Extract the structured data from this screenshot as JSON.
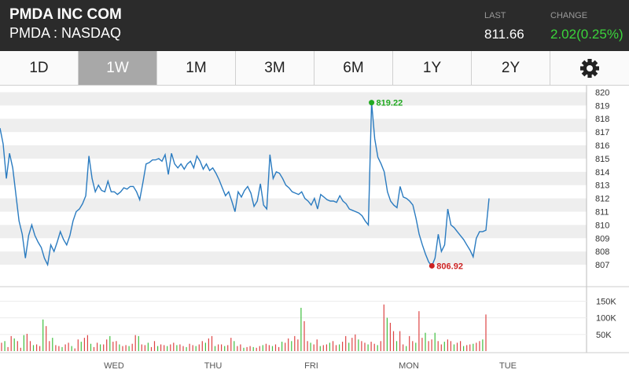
{
  "header": {
    "name": "PMDA INC COM",
    "exchange": "PMDA : NASDAQ",
    "last_label": "LAST",
    "last_value": "811.66",
    "change_label": "CHANGE",
    "change_value": "2.02(0.25%)",
    "change_color": "#3bd43b"
  },
  "tabs": [
    {
      "label": "1D",
      "selected": false
    },
    {
      "label": "1W",
      "selected": true
    },
    {
      "label": "1M",
      "selected": false
    },
    {
      "label": "3M",
      "selected": false
    },
    {
      "label": "6M",
      "selected": false
    },
    {
      "label": "1Y",
      "selected": false
    },
    {
      "label": "2Y",
      "selected": false
    }
  ],
  "settings_icon": "gear-icon",
  "chart_data": [
    {
      "type": "line",
      "series": [
        {
          "values": [
            817.3,
            816.1,
            813.5,
            815.4,
            814.3,
            812.3,
            810.3,
            809.3,
            807.5,
            809.2,
            810.0,
            809.2,
            808.7,
            808.3,
            807.5,
            807.0,
            808.5,
            808.0,
            808.7,
            809.5,
            808.9,
            808.5,
            809.2,
            810.3,
            811.0,
            811.2,
            811.6,
            812.2,
            815.2,
            813.5,
            812.5,
            813.0,
            812.6,
            812.5,
            813.3,
            812.5,
            812.5,
            812.3,
            812.5,
            812.8,
            812.7,
            812.9,
            812.9,
            812.5,
            811.9,
            813.2,
            814.6,
            814.7,
            814.9,
            814.9,
            815.0,
            814.8,
            815.3,
            813.8,
            815.4,
            814.6,
            814.3,
            814.6,
            814.2,
            814.6,
            814.8,
            814.3,
            815.2,
            814.8,
            814.2,
            814.6,
            814.1,
            814.3,
            813.9,
            813.4,
            812.8,
            812.2,
            812.5,
            811.8,
            811.0,
            812.5,
            812.1,
            812.6,
            812.9,
            812.4,
            811.4,
            811.8,
            813.1,
            811.5,
            811.2,
            815.3,
            813.5,
            814.0,
            813.9,
            813.5,
            813.0,
            812.8,
            812.5,
            812.4,
            812.3,
            812.5,
            812.0,
            811.8,
            811.5,
            812.0,
            811.2,
            812.3,
            812.1,
            811.9,
            811.8,
            811.8,
            811.7,
            812.2,
            811.8,
            811.6,
            811.2,
            811.1,
            811.0,
            810.9,
            810.7,
            810.3,
            810.0,
            819.22,
            816.5,
            815.1,
            814.6,
            814.0,
            812.5,
            811.8,
            811.5,
            811.3,
            812.9,
            812.1,
            812.0,
            811.8,
            811.5,
            810.5,
            809.3,
            808.5,
            807.8,
            807.2,
            806.92,
            807.5,
            809.3,
            808.0,
            808.5,
            811.2,
            810.0,
            809.8,
            809.5,
            809.2,
            808.9,
            808.5,
            808.1,
            807.6,
            809.0,
            809.5,
            809.5,
            809.6,
            812.0
          ]
        }
      ],
      "xlabels": [
        "WED",
        "THU",
        "FRI",
        "MON",
        "TUE"
      ],
      "ylim": [
        806,
        820.5
      ],
      "yticks": [
        820,
        819,
        818,
        817,
        816,
        815,
        814,
        813,
        812,
        811,
        810,
        809,
        808,
        807
      ],
      "annotations": [
        {
          "label": "819.22",
          "color": "#22aa22"
        },
        {
          "label": "806.92",
          "color": "#cc2222"
        }
      ]
    },
    {
      "type": "bar",
      "yticks": [
        "150K",
        "100K",
        "50K"
      ],
      "ylim": [
        0,
        170
      ],
      "values": [
        25,
        30,
        12,
        45,
        38,
        30,
        10,
        48,
        52,
        30,
        18,
        20,
        15,
        95,
        75,
        30,
        40,
        18,
        15,
        12,
        20,
        25,
        15,
        8,
        35,
        28,
        40,
        48,
        22,
        12,
        25,
        20,
        20,
        35,
        45,
        28,
        30,
        20,
        15,
        18,
        15,
        22,
        48,
        45,
        20,
        18,
        25,
        12,
        30,
        15,
        20,
        18,
        15,
        20,
        25,
        18,
        20,
        15,
        12,
        22,
        18,
        15,
        20,
        30,
        25,
        38,
        45,
        15,
        20,
        20,
        15,
        18,
        40,
        30,
        15,
        20,
        10,
        12,
        15,
        12,
        10,
        15,
        18,
        22,
        18,
        15,
        20,
        12,
        28,
        25,
        38,
        30,
        45,
        35,
        130,
        90,
        30,
        25,
        20,
        35,
        15,
        18,
        20,
        25,
        30,
        18,
        20,
        28,
        45,
        25,
        40,
        50,
        35,
        30,
        25,
        20,
        28,
        22,
        18,
        30,
        140,
        100,
        85,
        60,
        30,
        60,
        20,
        15,
        45,
        30,
        25,
        120,
        40,
        55,
        30,
        35,
        55,
        30,
        20,
        28,
        35,
        30,
        20,
        25,
        30,
        15,
        18,
        20,
        22,
        25,
        30,
        35,
        110
      ],
      "colors": [
        "#dd4444",
        "#3fbf3f"
      ]
    }
  ]
}
